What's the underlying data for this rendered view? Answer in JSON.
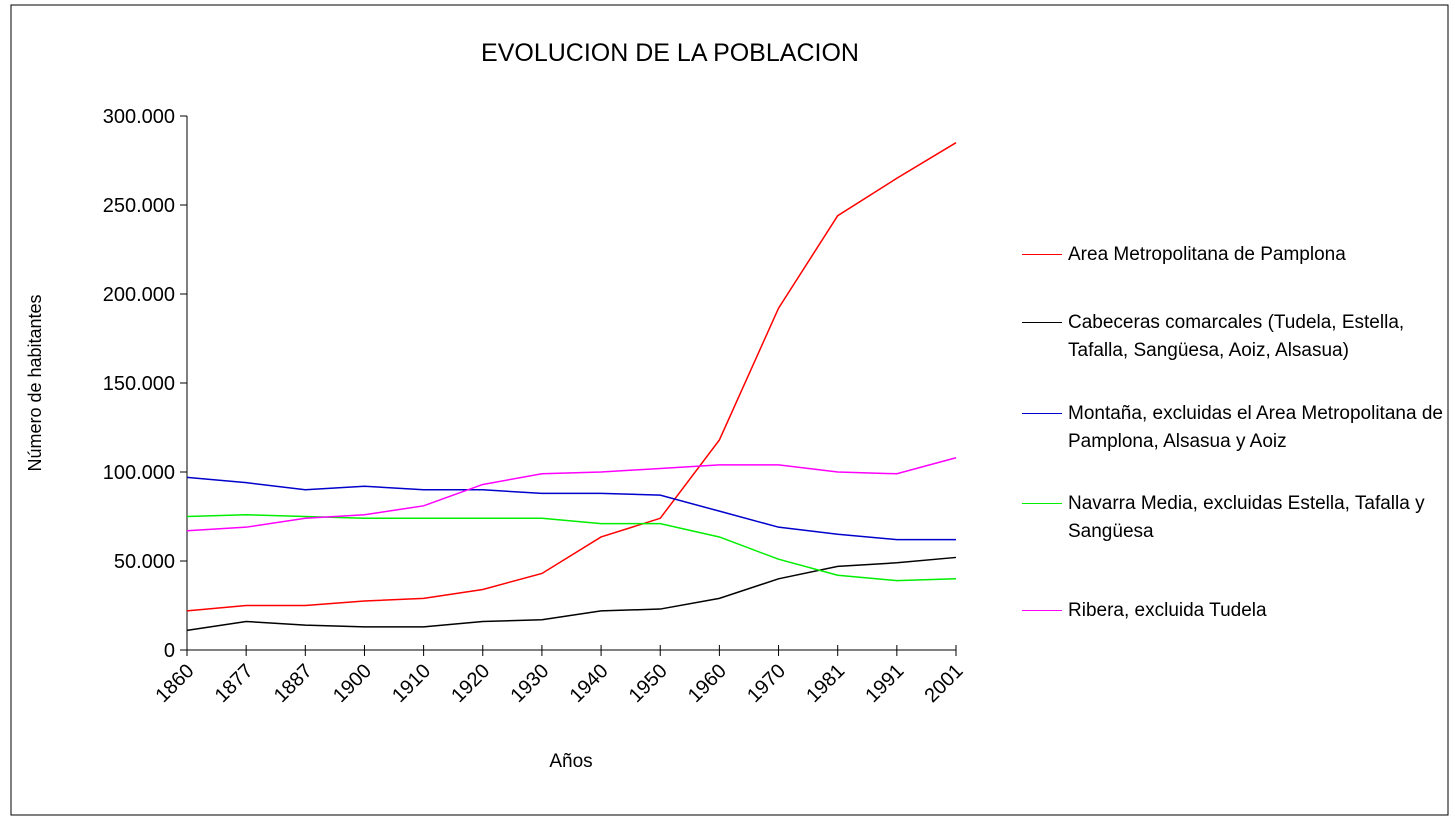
{
  "chart_data": {
    "type": "line",
    "title": "EVOLUCION DE LA POBLACION",
    "x_label": "Años",
    "y_label": "Número de habitantes",
    "categories": [
      "1860",
      "1877",
      "1887",
      "1900",
      "1910",
      "1920",
      "1930",
      "1940",
      "1950",
      "1960",
      "1970",
      "1981",
      "1991",
      "2001"
    ],
    "ylim": [
      0,
      300000
    ],
    "yticks": [
      {
        "value": 0,
        "label": "0"
      },
      {
        "value": 50000,
        "label": "50.000"
      },
      {
        "value": 100000,
        "label": "100.000"
      },
      {
        "value": 150000,
        "label": "150.000"
      },
      {
        "value": 200000,
        "label": "200.000"
      },
      {
        "value": 250000,
        "label": "250.000"
      },
      {
        "value": 300000,
        "label": "300.000"
      }
    ],
    "series": [
      {
        "name": "Area Metropolitana de Pamplona",
        "color": "#ff0000",
        "values": [
          22000,
          25000,
          25000,
          27500,
          29000,
          34000,
          43000,
          63500,
          74000,
          118000,
          192000,
          244000,
          265000,
          285000
        ]
      },
      {
        "name": "Cabeceras comarcales (Tudela, Estella, Tafalla, Sangüesa, Aoiz, Alsasua)",
        "color": "#000000",
        "values": [
          11000,
          16000,
          14000,
          13000,
          13000,
          16000,
          17000,
          22000,
          23000,
          29000,
          40000,
          47000,
          49000,
          52000
        ]
      },
      {
        "name": "Montaña, excluidas el Area Metropolitana de Pamplona, Alsasua y Aoiz",
        "color": "#0000cc",
        "values": [
          97000,
          94000,
          90000,
          92000,
          90000,
          90000,
          88000,
          88000,
          87000,
          78000,
          69000,
          65000,
          62000,
          62000
        ]
      },
      {
        "name": "Navarra Media, excluidas Estella, Tafalla y Sangüesa",
        "color": "#00ee00",
        "values": [
          75000,
          76000,
          75000,
          74000,
          74000,
          74000,
          74000,
          71000,
          71000,
          63500,
          51000,
          42000,
          39000,
          40000
        ]
      },
      {
        "name": "Ribera, excluida Tudela",
        "color": "#ff00ff",
        "values": [
          67000,
          69000,
          74000,
          76000,
          81000,
          93000,
          99000,
          100000,
          102000,
          104000,
          104000,
          100000,
          99000,
          108000
        ]
      }
    ]
  }
}
